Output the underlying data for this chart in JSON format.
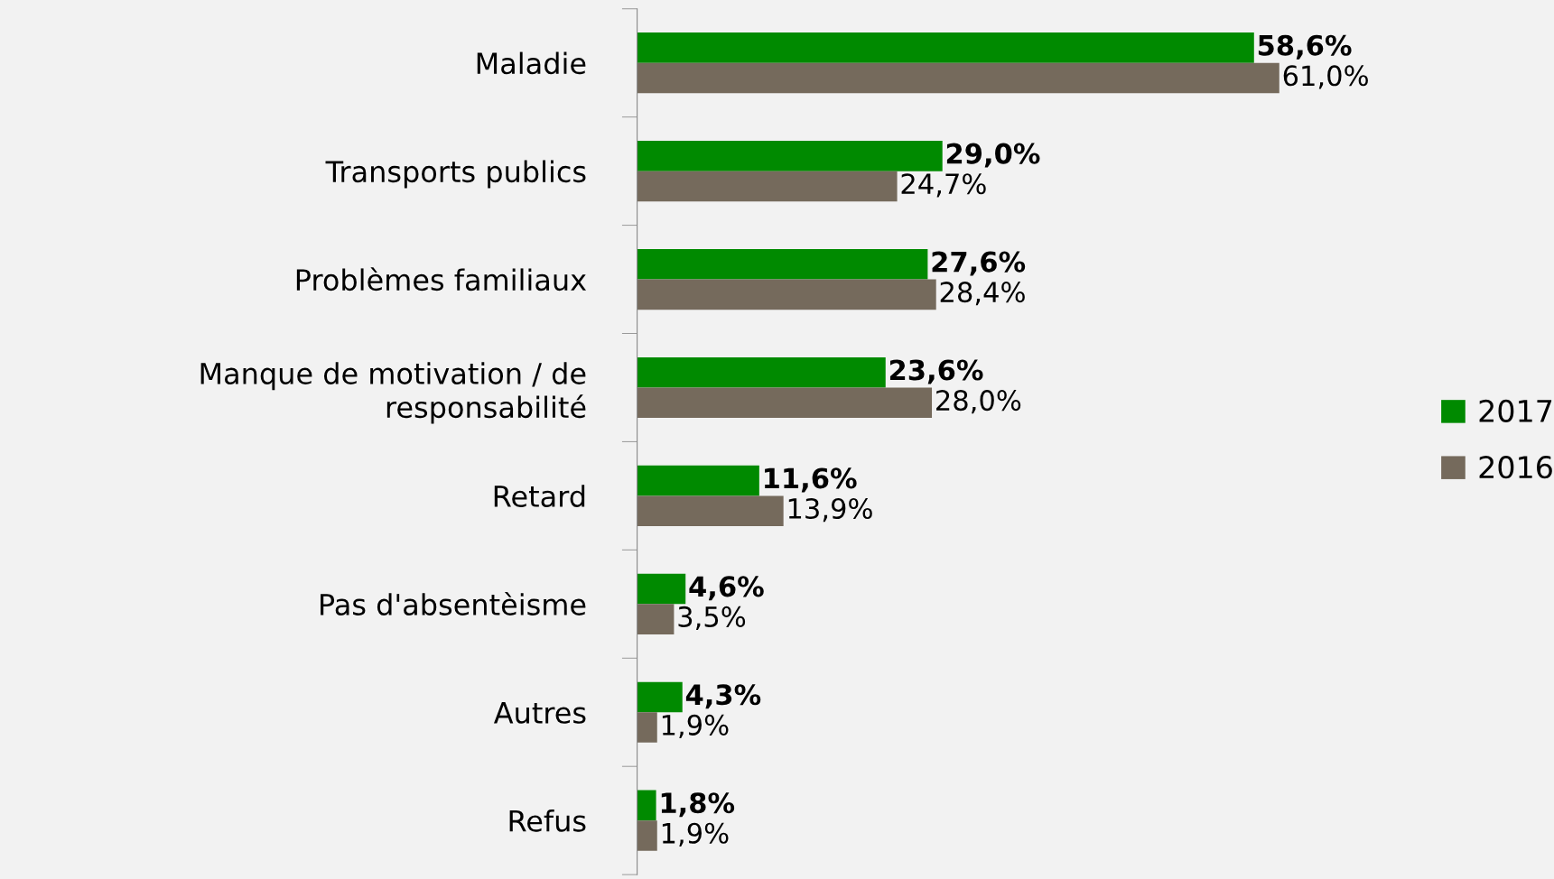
{
  "chart_data": {
    "type": "bar",
    "orientation": "horizontal",
    "categories": [
      "Maladie",
      "Transports publics",
      "Problèmes familiaux",
      "Manque de motivation / de responsabilité",
      "Retard",
      "Pas d'absentèisme",
      "Autres",
      "Refus"
    ],
    "series": [
      {
        "name": "2017",
        "color": "#008a00",
        "values": [
          58.6,
          29.0,
          27.6,
          23.6,
          11.6,
          4.6,
          4.3,
          1.8
        ],
        "value_labels": [
          "58,6%",
          "29,0%",
          "27,6%",
          "23,6%",
          "11,6%",
          "4,6%",
          "4,3%",
          "1,8%"
        ]
      },
      {
        "name": "2016",
        "color": "#756a5c",
        "values": [
          61.0,
          24.7,
          28.4,
          28.0,
          13.9,
          3.5,
          1.9,
          1.9
        ],
        "value_labels": [
          "61,0%",
          "24,7%",
          "28,4%",
          "28,0%",
          "13,9%",
          "3,5%",
          "1,9%",
          "1,9%"
        ]
      }
    ],
    "legend": "right",
    "grid": false
  }
}
